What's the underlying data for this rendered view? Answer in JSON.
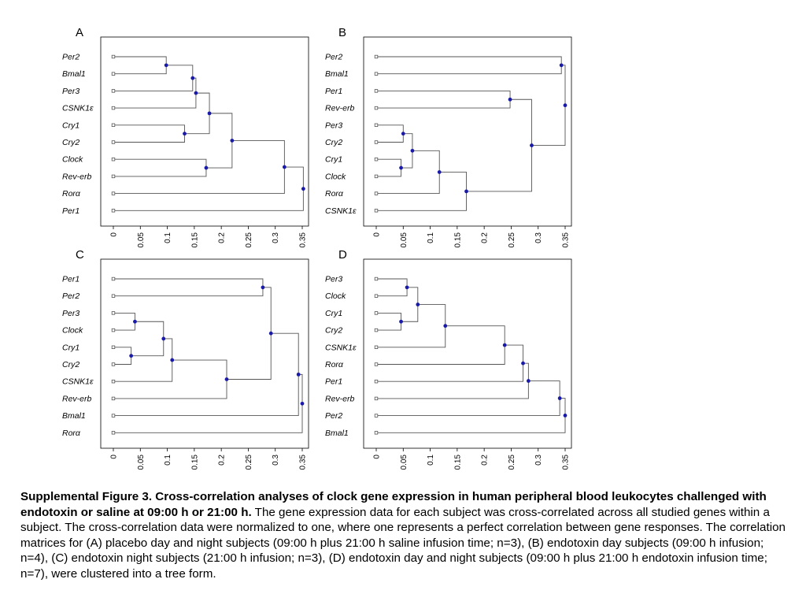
{
  "colors": {
    "frame": "#000000",
    "branch": "#555555",
    "node": "#1a1aa8",
    "leaf": "#ffffff"
  },
  "x_ticks": [
    "0",
    "0.05",
    "0.1",
    "0.15",
    "0.2",
    "0.25",
    "0.3",
    "0.35"
  ],
  "panels": [
    {
      "id": "A",
      "label": "A",
      "genes": [
        "Per2",
        "Bmal1",
        "Per3",
        "CSNK1ε",
        "Cry1",
        "Cry2",
        "Clock",
        "Rev-erb",
        "Rorα",
        "Per1"
      ],
      "merges": [
        {
          "a": 0,
          "b": 1,
          "h": 0.098
        },
        {
          "a": 10,
          "b": 2,
          "h": 0.147
        },
        {
          "a": 11,
          "b": 3,
          "h": 0.153
        },
        {
          "a": 4,
          "b": 5,
          "h": 0.132
        },
        {
          "a": 12,
          "b": 13,
          "h": 0.178
        },
        {
          "a": 6,
          "b": 7,
          "h": 0.172
        },
        {
          "a": 14,
          "b": 15,
          "h": 0.22
        },
        {
          "a": 16,
          "b": 8,
          "h": 0.317
        },
        {
          "a": 17,
          "b": 9,
          "h": 0.352
        }
      ]
    },
    {
      "id": "B",
      "label": "B",
      "genes": [
        "Per2",
        "Bmal1",
        "Per1",
        "Rev-erb",
        "Per3",
        "Cry2",
        "Cry1",
        "Clock",
        "Rorα",
        "CSNK1ε"
      ],
      "merges": [
        {
          "a": 0,
          "b": 1,
          "h": 0.343
        },
        {
          "a": 2,
          "b": 3,
          "h": 0.248
        },
        {
          "a": 4,
          "b": 5,
          "h": 0.05
        },
        {
          "a": 6,
          "b": 7,
          "h": 0.046
        },
        {
          "a": 12,
          "b": 13,
          "h": 0.067
        },
        {
          "a": 14,
          "b": 8,
          "h": 0.117
        },
        {
          "a": 15,
          "b": 9,
          "h": 0.167
        },
        {
          "a": 11,
          "b": 16,
          "h": 0.288
        },
        {
          "a": 10,
          "b": 17,
          "h": 0.35
        }
      ]
    },
    {
      "id": "C",
      "label": "C",
      "genes": [
        "Per1",
        "Per2",
        "Per3",
        "Clock",
        "Cry1",
        "Cry2",
        "CSNK1ε",
        "Rev-erb",
        "Bmal1",
        "Rorα"
      ],
      "merges": [
        {
          "a": 0,
          "b": 1,
          "h": 0.277
        },
        {
          "a": 2,
          "b": 3,
          "h": 0.04
        },
        {
          "a": 4,
          "b": 5,
          "h": 0.033
        },
        {
          "a": 11,
          "b": 12,
          "h": 0.093
        },
        {
          "a": 13,
          "b": 6,
          "h": 0.109
        },
        {
          "a": 14,
          "b": 7,
          "h": 0.21
        },
        {
          "a": 10,
          "b": 15,
          "h": 0.292
        },
        {
          "a": 16,
          "b": 8,
          "h": 0.343
        },
        {
          "a": 17,
          "b": 9,
          "h": 0.35
        }
      ]
    },
    {
      "id": "D",
      "label": "D",
      "genes": [
        "Per3",
        "Clock",
        "Cry1",
        "Cry2",
        "CSNK1ε",
        "Rorα",
        "Per1",
        "Rev-erb",
        "Per2",
        "Bmal1"
      ],
      "merges": [
        {
          "a": 0,
          "b": 1,
          "h": 0.057
        },
        {
          "a": 2,
          "b": 3,
          "h": 0.046
        },
        {
          "a": 10,
          "b": 11,
          "h": 0.077
        },
        {
          "a": 12,
          "b": 4,
          "h": 0.128
        },
        {
          "a": 13,
          "b": 5,
          "h": 0.238
        },
        {
          "a": 14,
          "b": 6,
          "h": 0.272
        },
        {
          "a": 15,
          "b": 7,
          "h": 0.282
        },
        {
          "a": 16,
          "b": 8,
          "h": 0.34
        },
        {
          "a": 17,
          "b": 9,
          "h": 0.35
        }
      ]
    }
  ],
  "caption": {
    "bold": "Supplemental Figure 3. Cross-correlation analyses of clock gene expression in human peripheral blood leukocytes challenged with endotoxin or saline at 09:00 h or 21:00 h.",
    "text": " The gene expression data for each subject was cross-correlated across all studied genes within a subject. The cross-correlation data were normalized to one, where one represents a perfect correlation between gene responses. The correlation matrices for (A) placebo day and night subjects (09:00 h plus 21:00 h saline infusion time; n=3), (B) endotoxin day subjects (09:00 h infusion; n=4), (C) endotoxin night subjects (21:00 h infusion; n=3), (D) endotoxin day and night subjects (09:00 h plus 21:00 h endotoxin infusion time; n=7), were clustered into a tree form."
  }
}
